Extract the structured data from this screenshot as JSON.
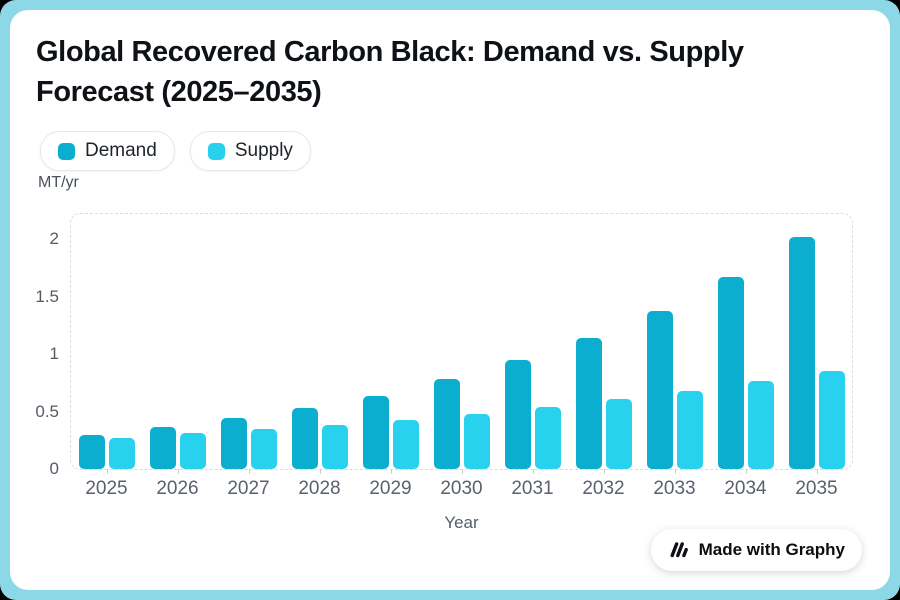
{
  "header": {
    "title_line1": "Global Recovered Carbon Black: Demand vs. Supply",
    "title_line2": "Forecast (2025–2035)"
  },
  "legend": {
    "items": [
      {
        "label": "Demand",
        "color": "#0CAECF"
      },
      {
        "label": "Supply",
        "color": "#28D2EE"
      }
    ]
  },
  "axes": {
    "y_unit_label": "MT/yr",
    "x_axis_title": "Year"
  },
  "chart_data": {
    "type": "bar",
    "title": "Global Recovered Carbon Black: Demand vs. Supply Forecast (2025–2035)",
    "xlabel": "Year",
    "ylabel": "MT/yr",
    "categories": [
      "2025",
      "2026",
      "2027",
      "2028",
      "2029",
      "2030",
      "2031",
      "2032",
      "2033",
      "2034",
      "2035"
    ],
    "series": [
      {
        "name": "Demand",
        "color": "#0CAECF",
        "values": [
          0.3,
          0.37,
          0.44,
          0.53,
          0.64,
          0.78,
          0.95,
          1.14,
          1.38,
          1.67,
          2.02
        ]
      },
      {
        "name": "Supply",
        "color": "#28D2EE",
        "values": [
          0.27,
          0.31,
          0.35,
          0.38,
          0.43,
          0.48,
          0.54,
          0.61,
          0.68,
          0.77,
          0.85
        ]
      }
    ],
    "yticks": [
      0,
      0.5,
      1,
      1.5,
      2
    ],
    "ylim": [
      0,
      2.22
    ],
    "grid": false,
    "legend_position": "top-left"
  },
  "footer": {
    "badge_label": "Made with Graphy"
  },
  "colors": {
    "frame": "#8DD8E6",
    "card": "#FFFFFF",
    "demand": "#0CAECF",
    "supply": "#28D2EE",
    "title_text": "#0E1116",
    "axis_text": "#59626C",
    "plot_border": "#D9DDE2"
  }
}
